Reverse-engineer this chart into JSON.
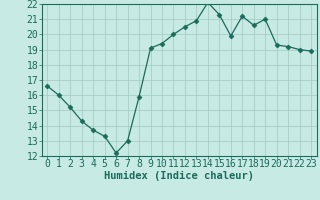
{
  "x": [
    0,
    1,
    2,
    3,
    4,
    5,
    6,
    7,
    8,
    9,
    10,
    11,
    12,
    13,
    14,
    15,
    16,
    17,
    18,
    19,
    20,
    21,
    22,
    23
  ],
  "y": [
    16.6,
    16.0,
    15.2,
    14.3,
    13.7,
    13.3,
    12.2,
    13.0,
    15.9,
    19.1,
    19.4,
    20.0,
    20.5,
    20.9,
    22.1,
    21.3,
    19.9,
    21.2,
    20.6,
    21.0,
    19.3,
    19.2,
    19.0,
    18.9
  ],
  "line_color": "#1a6b5a",
  "marker": "D",
  "marker_size": 2.5,
  "bg_color": "#c8eae4",
  "grid_color": "#a0c8c0",
  "xlabel": "Humidex (Indice chaleur)",
  "xlabel_fontsize": 7.5,
  "tick_fontsize": 7,
  "ylim": [
    12,
    22
  ],
  "xlim": [
    -0.5,
    23.5
  ],
  "yticks": [
    12,
    13,
    14,
    15,
    16,
    17,
    18,
    19,
    20,
    21,
    22
  ],
  "xticks": [
    0,
    1,
    2,
    3,
    4,
    5,
    6,
    7,
    8,
    9,
    10,
    11,
    12,
    13,
    14,
    15,
    16,
    17,
    18,
    19,
    20,
    21,
    22,
    23
  ],
  "tick_color": "#1a6b5a",
  "label_color": "#1a6b5a"
}
